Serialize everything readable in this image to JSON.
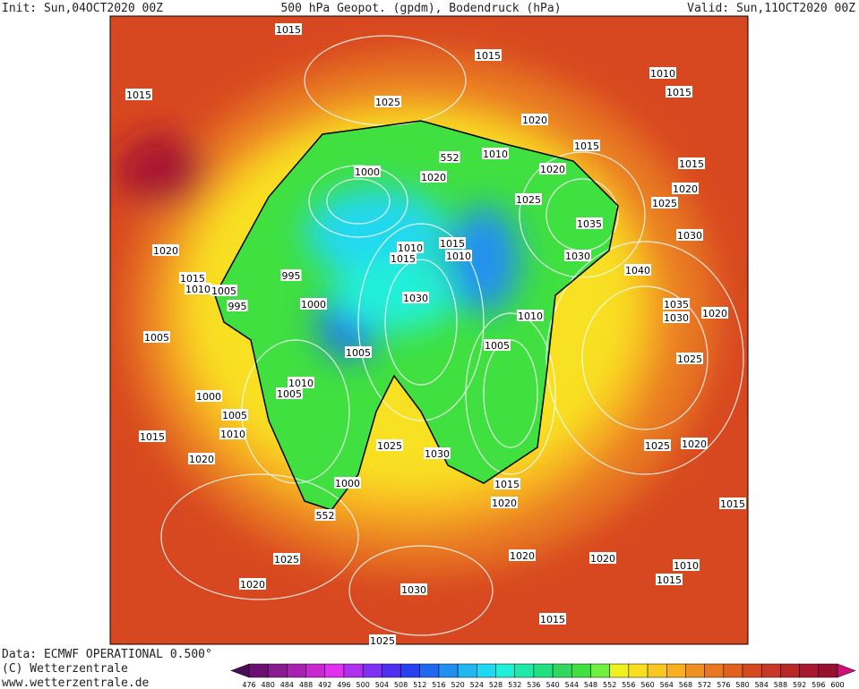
{
  "header": {
    "init": "Init: Sun,04OCT2020 00Z",
    "title": "500 hPa Geopot. (gpdm), Bodendruck (hPa)",
    "valid": "Valid: Sun,11OCT2020 00Z"
  },
  "footer": {
    "data": "Data: ECMWF OPERATIONAL 0.500°",
    "copyright": "(C) Wetterzentrale",
    "url": "www.wetterzentrale.de"
  },
  "colorbar": {
    "ticks": [
      476,
      480,
      484,
      488,
      492,
      496,
      500,
      504,
      508,
      512,
      516,
      520,
      524,
      528,
      532,
      536,
      540,
      544,
      548,
      552,
      556,
      560,
      564,
      568,
      572,
      576,
      580,
      584,
      588,
      592,
      596,
      600
    ],
    "colors": [
      "#4b0c5a",
      "#6a1070",
      "#8a1a90",
      "#a820b0",
      "#c828d0",
      "#e030f0",
      "#b030f0",
      "#8030f0",
      "#5030f0",
      "#2840f0",
      "#2068f0",
      "#2090f0",
      "#20b8f0",
      "#20d8f0",
      "#20f0d8",
      "#20e8a8",
      "#20e080",
      "#30d860",
      "#40e040",
      "#70f040",
      "#f0f020",
      "#f8e020",
      "#f8c820",
      "#f8b020",
      "#f09020",
      "#e87820",
      "#e06020",
      "#d84820",
      "#c83828",
      "#b82828",
      "#a81830",
      "#981030",
      "#d0107a"
    ]
  },
  "isobars": {
    "labels": [
      1015,
      1015,
      1010,
      1015,
      1015,
      1025,
      1020,
      1015,
      1010,
      552,
      1015,
      1000,
      1020,
      1020,
      1020,
      1025,
      1025,
      1035,
      1030,
      1010,
      1015,
      1015,
      1010,
      1030,
      1020,
      1040,
      995,
      1015,
      1010,
      1005,
      1030,
      995,
      1035,
      1000,
      1030,
      1020,
      1010,
      1005,
      1005,
      1005,
      1025,
      1010,
      1005,
      1000,
      1005,
      1010,
      1015,
      1025,
      1025,
      1020,
      1030,
      1020,
      1000,
      1015,
      552,
      1020,
      1015,
      1025,
      1020,
      1020,
      1010,
      1020,
      1030,
      1015,
      1015,
      1025
    ]
  }
}
